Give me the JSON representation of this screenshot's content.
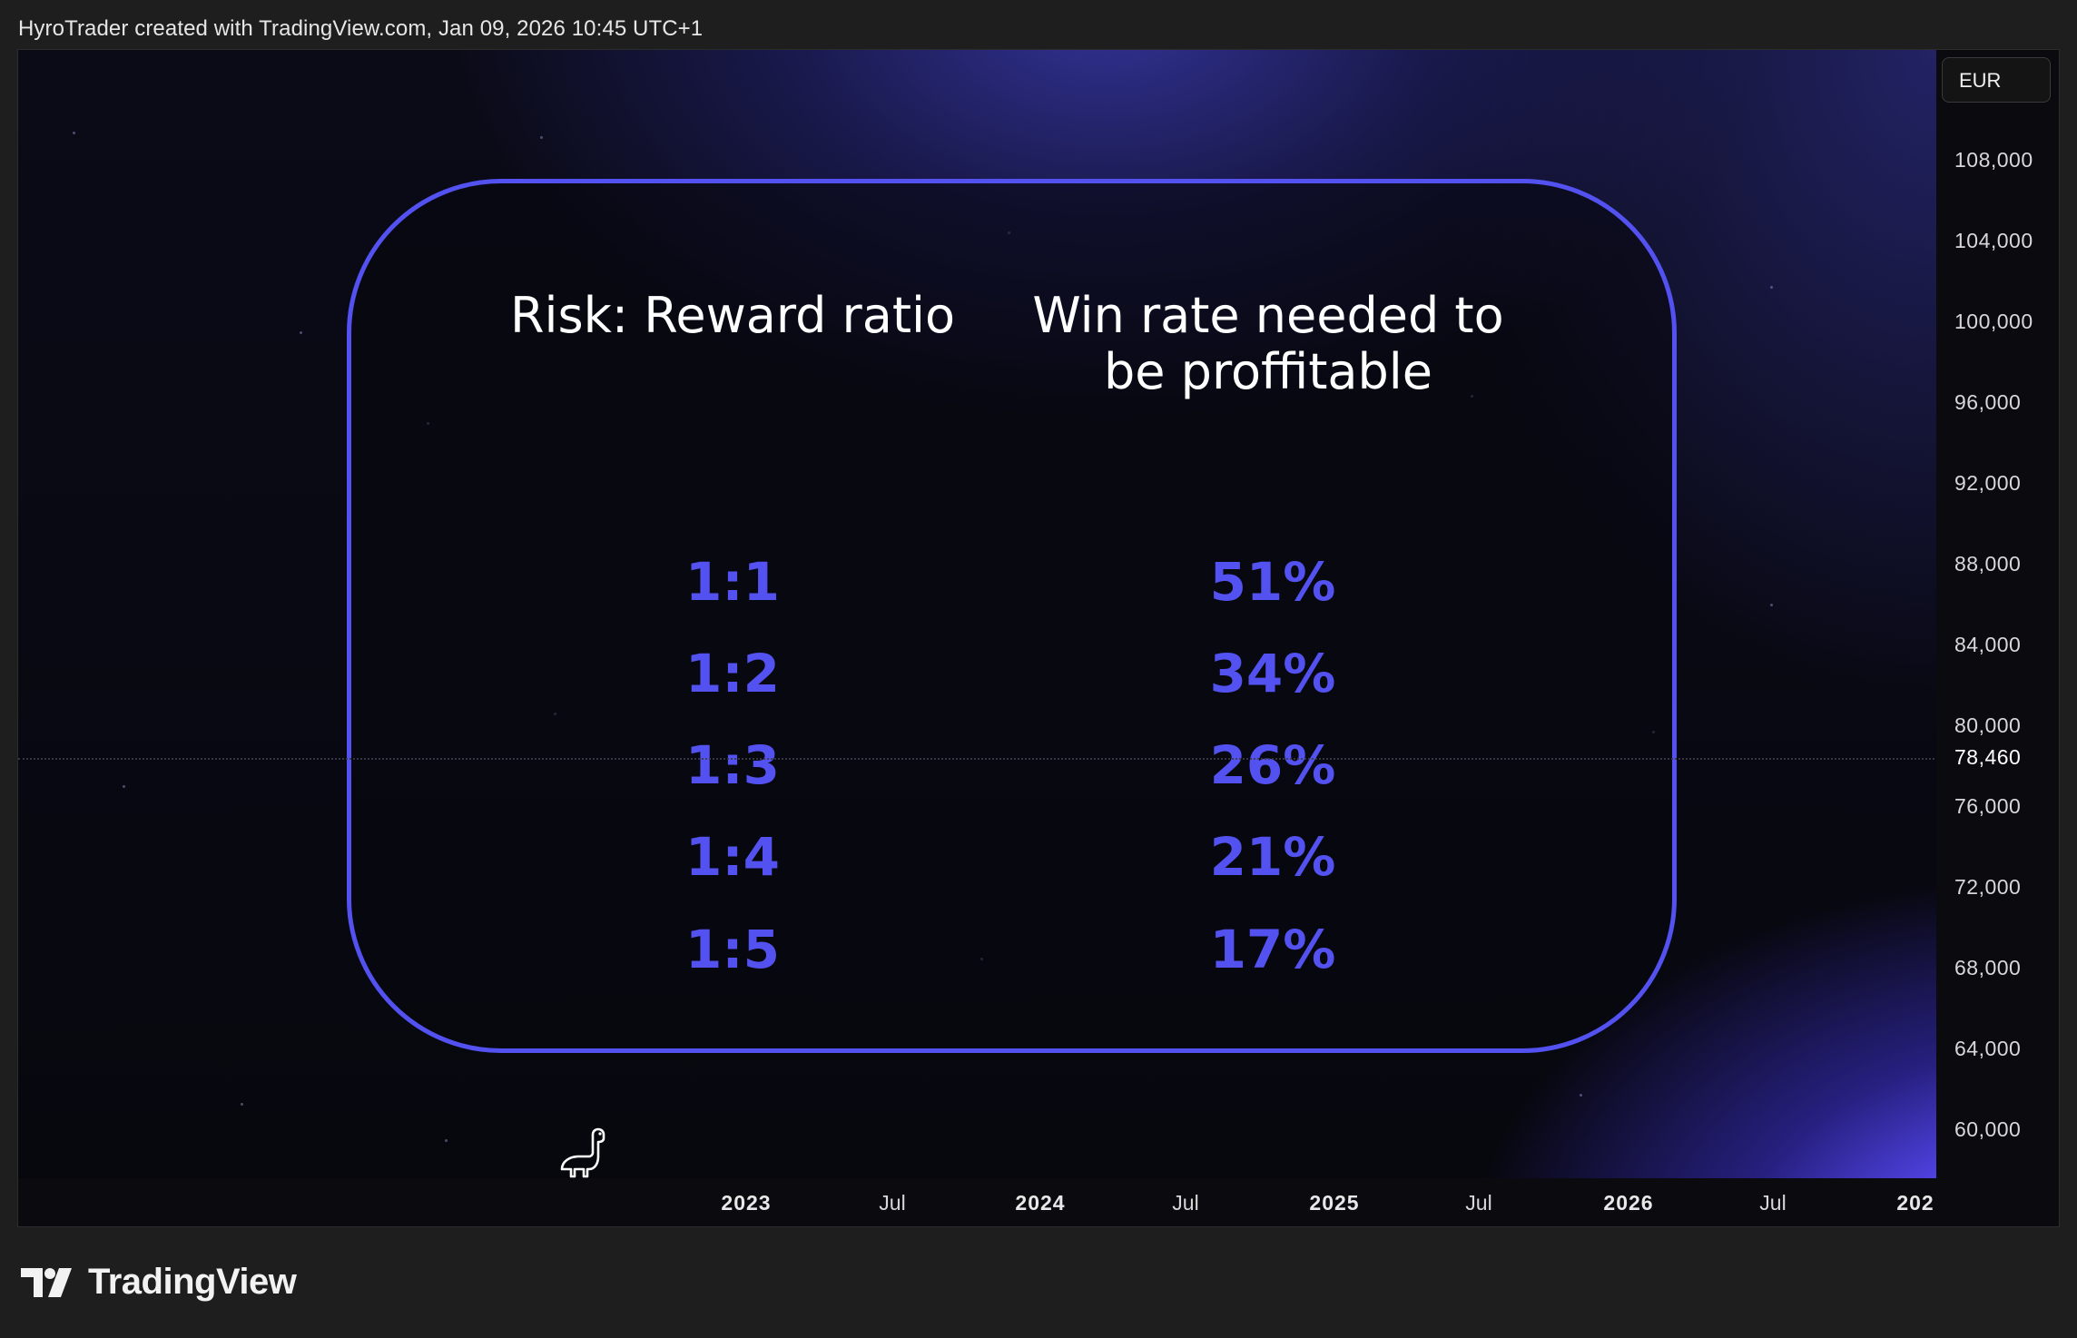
{
  "header": {
    "attribution": "HyroTrader created with TradingView.com, Jan 09, 2026 10:45 UTC+1"
  },
  "card": {
    "col1_header": "Risk: Reward ratio",
    "col2_header_line1": "Win rate needed to",
    "col2_header_line2": "be proffitable",
    "rows": [
      {
        "ratio": "1:1",
        "winrate": "51%"
      },
      {
        "ratio": "1:2",
        "winrate": "34%"
      },
      {
        "ratio": "1:3",
        "winrate": "26%"
      },
      {
        "ratio": "1:4",
        "winrate": "21%"
      },
      {
        "ratio": "1:5",
        "winrate": "17%"
      }
    ],
    "accent_color": "#5352f0"
  },
  "y_axis": {
    "currency": "EUR",
    "ticks": [
      "108,000",
      "104,000",
      "100,000",
      "96,000",
      "92,000",
      "88,000",
      "84,000",
      "80,000",
      "76,000",
      "72,000",
      "68,000",
      "64,000",
      "60,000"
    ],
    "current_price": "78,460"
  },
  "x_axis": {
    "ticks": [
      "2023",
      "Jul",
      "2024",
      "Jul",
      "2025",
      "Jul",
      "2026",
      "Jul",
      "202"
    ]
  },
  "footer": {
    "brand": "TradingView",
    "logo_icon": "tradingview-logo-icon"
  },
  "icons": {
    "chart_mascot": "dino-icon"
  }
}
